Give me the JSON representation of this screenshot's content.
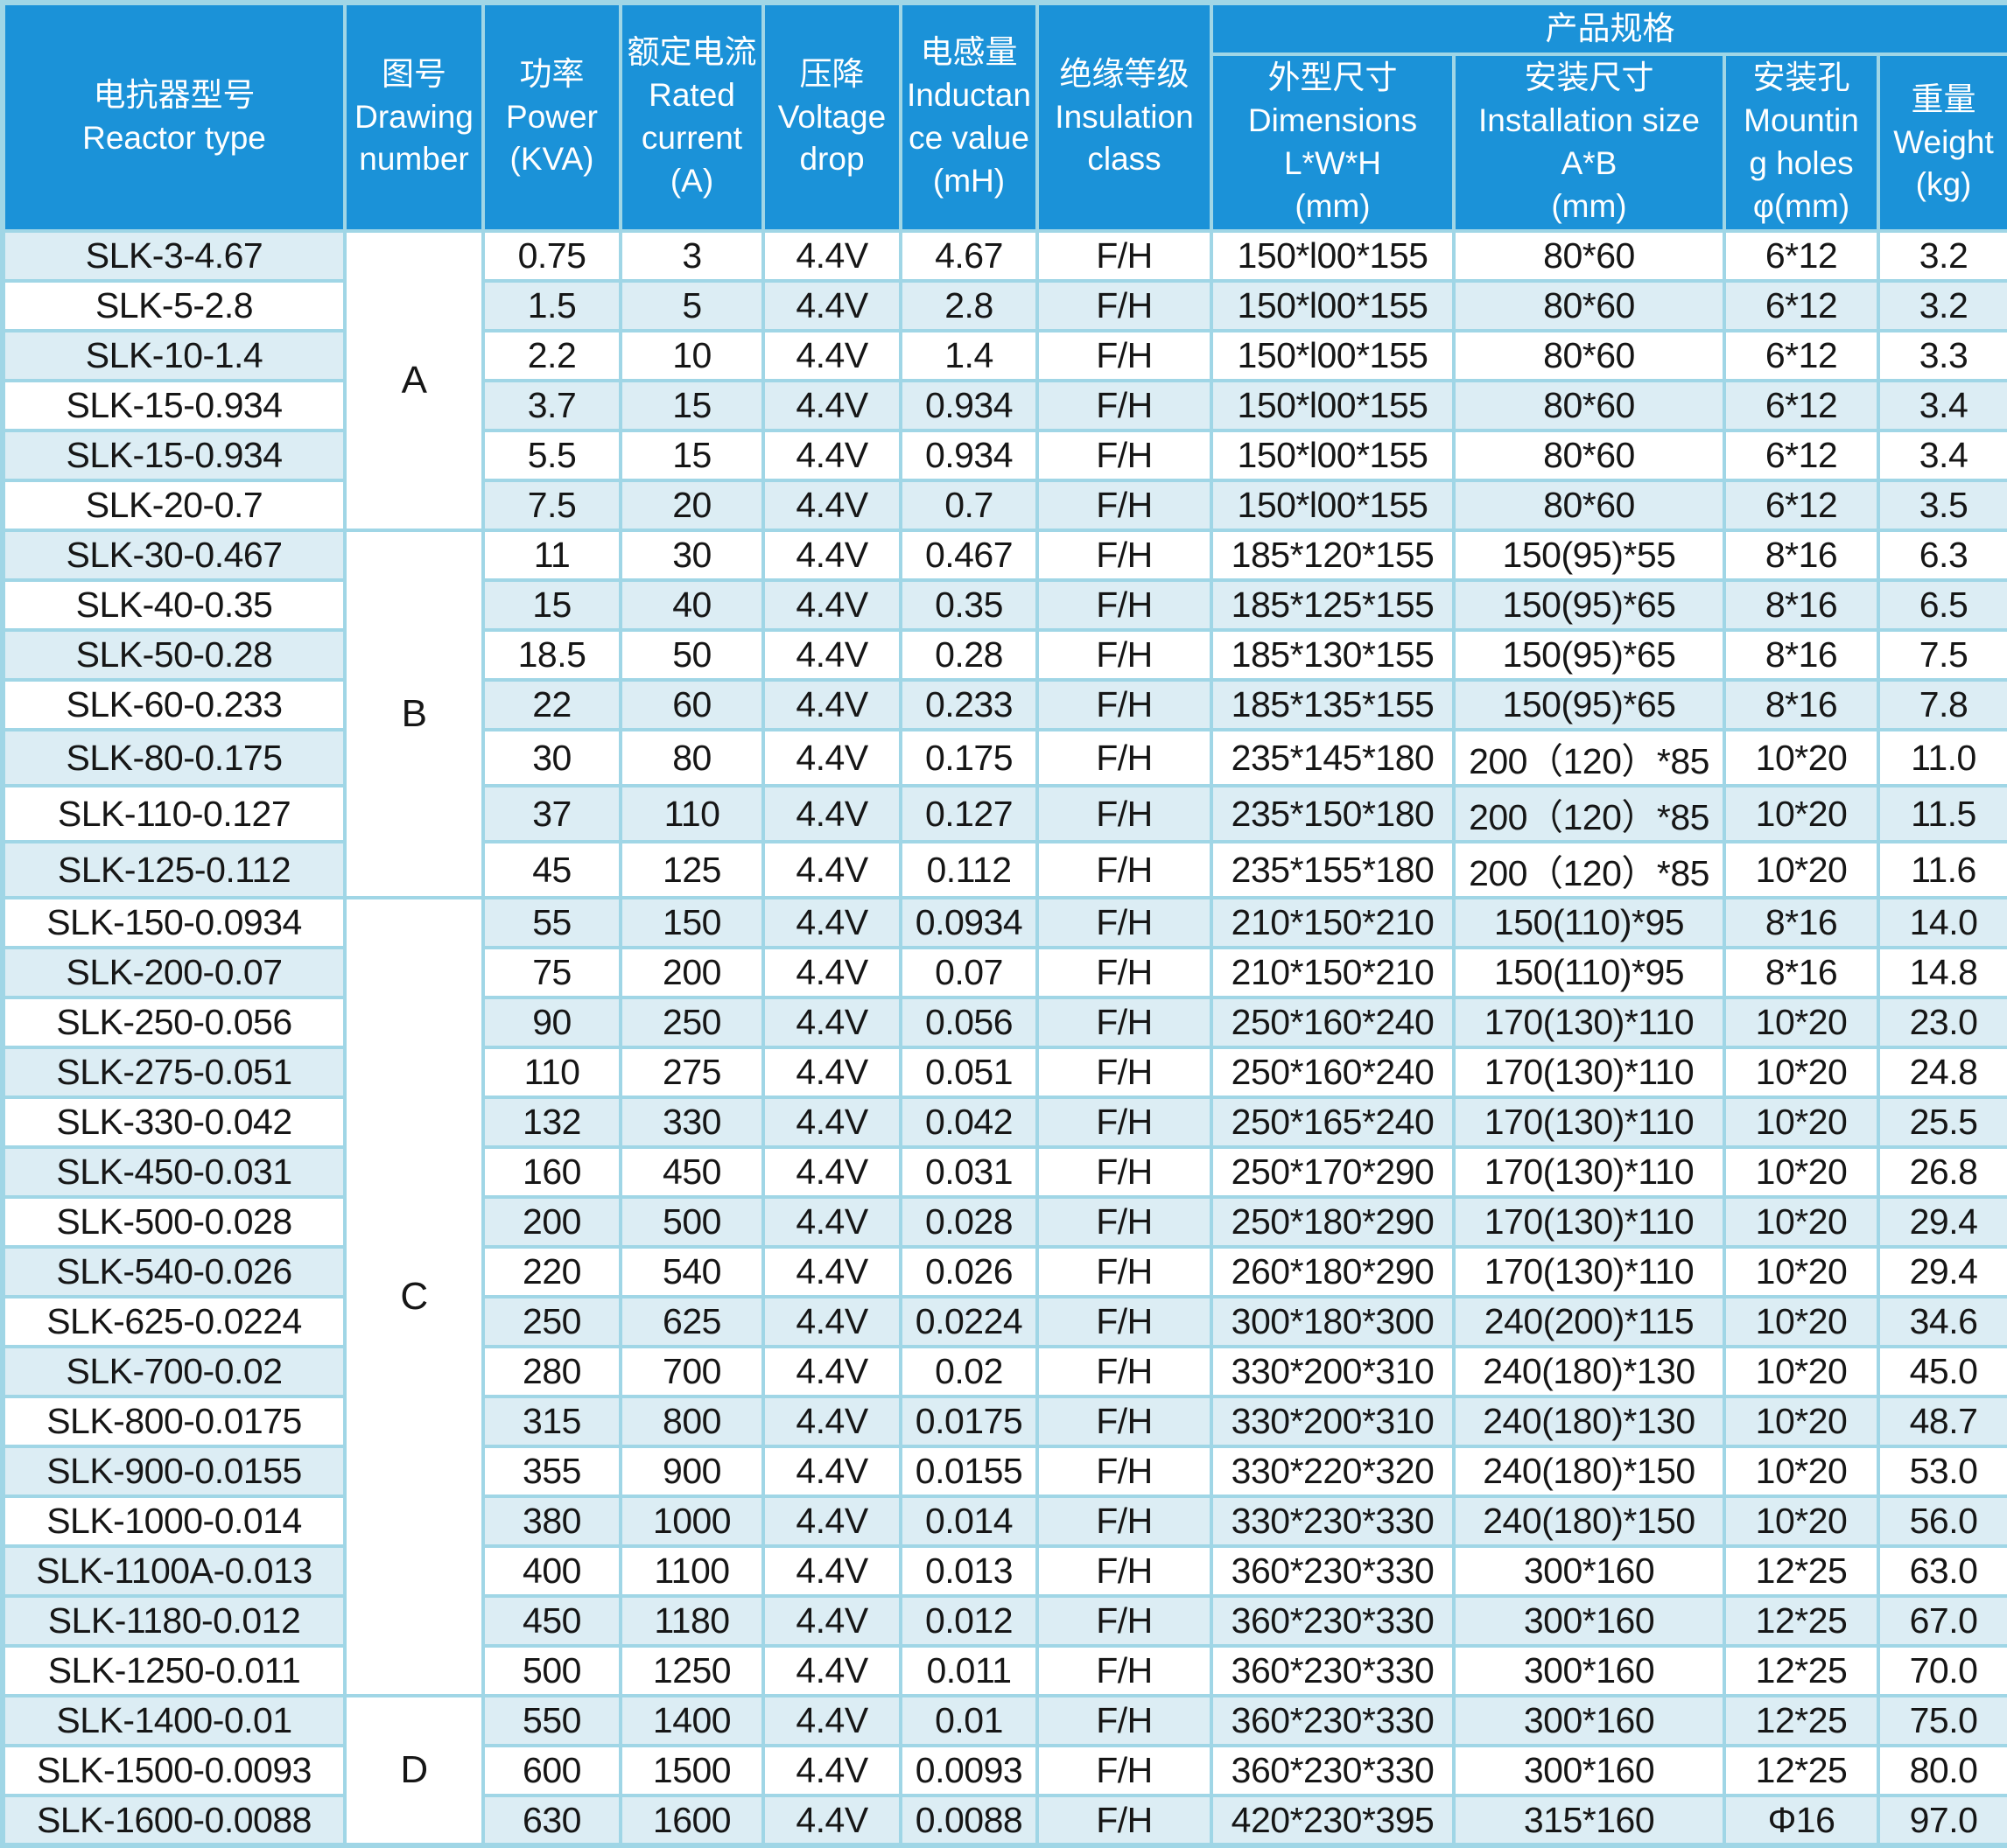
{
  "colors": {
    "header_bg": "#1b92d8",
    "row_blue": "#dcedf4",
    "row_white": "#ffffff",
    "border": "#a0d6e6",
    "header_text": "#ffffff",
    "body_text": "#161616"
  },
  "table": {
    "header": {
      "reactor_type": "电抗器型号\nReactor type",
      "drawing_number": "图号\nDrawing\nnumber",
      "power": "功率\nPower\n(KVA)",
      "rated_current": "额定电流\nRated\ncurrent\n(A)",
      "voltage_drop": "压降\nVoltage\ndrop",
      "inductance": "电感量\nInductan\nce value\n(mH)",
      "insulation": "绝缘等级\nInsulation\nclass",
      "product_spec": "产品规格",
      "dimensions": "外型尺寸\nDimensions\nL*W*H\n(mm)",
      "installation": "安装尺寸\nInstallation size\nA*B\n(mm)",
      "mounting_holes": "安装孔\nMountin\ng holes\nφ(mm)",
      "weight": "重量\nWeight\n(kg)"
    },
    "groups": [
      {
        "label": "A",
        "start": 0,
        "span": 6
      },
      {
        "label": "B",
        "start": 6,
        "span": 7
      },
      {
        "label": "C",
        "start": 13,
        "span": 16
      },
      {
        "label": "D",
        "start": 29,
        "span": 3
      }
    ],
    "rows": [
      {
        "type": "SLK-3-4.67",
        "power": "0.75",
        "current": "3",
        "drop": "4.4V",
        "inductance": "4.67",
        "insulation": "F/H",
        "dimensions": "150*l00*155",
        "installation": "80*60",
        "holes": "6*12",
        "weight": "3.2",
        "left_bg": "blue",
        "data_bg": "white"
      },
      {
        "type": "SLK-5-2.8",
        "power": "1.5",
        "current": "5",
        "drop": "4.4V",
        "inductance": "2.8",
        "insulation": "F/H",
        "dimensions": "150*l00*155",
        "installation": "80*60",
        "holes": "6*12",
        "weight": "3.2",
        "left_bg": "white",
        "data_bg": "blue"
      },
      {
        "type": "SLK-10-1.4",
        "power": "2.2",
        "current": "10",
        "drop": "4.4V",
        "inductance": "1.4",
        "insulation": "F/H",
        "dimensions": "150*l00*155",
        "installation": "80*60",
        "holes": "6*12",
        "weight": "3.3",
        "left_bg": "blue",
        "data_bg": "white"
      },
      {
        "type": "SLK-15-0.934",
        "power": "3.7",
        "current": "15",
        "drop": "4.4V",
        "inductance": "0.934",
        "insulation": "F/H",
        "dimensions": "150*l00*155",
        "installation": "80*60",
        "holes": "6*12",
        "weight": "3.4",
        "left_bg": "white",
        "data_bg": "blue"
      },
      {
        "type": "SLK-15-0.934",
        "power": "5.5",
        "current": "15",
        "drop": "4.4V",
        "inductance": "0.934",
        "insulation": "F/H",
        "dimensions": "150*l00*155",
        "installation": "80*60",
        "holes": "6*12",
        "weight": "3.4",
        "left_bg": "blue",
        "data_bg": "white"
      },
      {
        "type": "SLK-20-0.7",
        "power": "7.5",
        "current": "20",
        "drop": "4.4V",
        "inductance": "0.7",
        "insulation": "F/H",
        "dimensions": "150*l00*155",
        "installation": "80*60",
        "holes": "6*12",
        "weight": "3.5",
        "left_bg": "white",
        "data_bg": "blue"
      },
      {
        "type": "SLK-30-0.467",
        "power": "11",
        "current": "30",
        "drop": "4.4V",
        "inductance": "0.467",
        "insulation": "F/H",
        "dimensions": "185*120*155",
        "installation": "150(95)*55",
        "holes": "8*16",
        "weight": "6.3",
        "left_bg": "blue",
        "data_bg": "white"
      },
      {
        "type": "SLK-40-0.35",
        "power": "15",
        "current": "40",
        "drop": "4.4V",
        "inductance": "0.35",
        "insulation": "F/H",
        "dimensions": "185*125*155",
        "installation": "150(95)*65",
        "holes": "8*16",
        "weight": "6.5",
        "left_bg": "white",
        "data_bg": "blue"
      },
      {
        "type": "SLK-50-0.28",
        "power": "18.5",
        "current": "50",
        "drop": "4.4V",
        "inductance": "0.28",
        "insulation": "F/H",
        "dimensions": "185*130*155",
        "installation": "150(95)*65",
        "holes": "8*16",
        "weight": "7.5",
        "left_bg": "blue",
        "data_bg": "white"
      },
      {
        "type": "SLK-60-0.233",
        "power": "22",
        "current": "60",
        "drop": "4.4V",
        "inductance": "0.233",
        "insulation": "F/H",
        "dimensions": "185*135*155",
        "installation": "150(95)*65",
        "holes": "8*16",
        "weight": "7.8",
        "left_bg": "white",
        "data_bg": "blue"
      },
      {
        "type": "SLK-80-0.175",
        "power": "30",
        "current": "80",
        "drop": "4.4V",
        "inductance": "0.175",
        "insulation": "F/H",
        "dimensions": "235*145*180",
        "installation": "200（120）*85",
        "holes": "10*20",
        "weight": "11.0",
        "left_bg": "blue",
        "data_bg": "white"
      },
      {
        "type": "SLK-110-0.127",
        "power": "37",
        "current": "110",
        "drop": "4.4V",
        "inductance": "0.127",
        "insulation": "F/H",
        "dimensions": "235*150*180",
        "installation": "200（120）*85",
        "holes": "10*20",
        "weight": "11.5",
        "left_bg": "white",
        "data_bg": "blue"
      },
      {
        "type": "SLK-125-0.112",
        "power": "45",
        "current": "125",
        "drop": "4.4V",
        "inductance": "0.112",
        "insulation": "F/H",
        "dimensions": "235*155*180",
        "installation": "200（120）*85",
        "holes": "10*20",
        "weight": "11.6",
        "left_bg": "blue",
        "data_bg": "white"
      },
      {
        "type": "SLK-150-0.0934",
        "power": "55",
        "current": "150",
        "drop": "4.4V",
        "inductance": "0.0934",
        "insulation": "F/H",
        "dimensions": "210*150*210",
        "installation": "150(110)*95",
        "holes": "8*16",
        "weight": "14.0",
        "left_bg": "white",
        "data_bg": "blue"
      },
      {
        "type": "SLK-200-0.07",
        "power": "75",
        "current": "200",
        "drop": "4.4V",
        "inductance": "0.07",
        "insulation": "F/H",
        "dimensions": "210*150*210",
        "installation": "150(110)*95",
        "holes": "8*16",
        "weight": "14.8",
        "left_bg": "blue",
        "data_bg": "white"
      },
      {
        "type": "SLK-250-0.056",
        "power": "90",
        "current": "250",
        "drop": "4.4V",
        "inductance": "0.056",
        "insulation": "F/H",
        "dimensions": "250*160*240",
        "installation": "170(130)*110",
        "holes": "10*20",
        "weight": "23.0",
        "left_bg": "white",
        "data_bg": "blue"
      },
      {
        "type": "SLK-275-0.051",
        "power": "110",
        "current": "275",
        "drop": "4.4V",
        "inductance": "0.051",
        "insulation": "F/H",
        "dimensions": "250*160*240",
        "installation": "170(130)*110",
        "holes": "10*20",
        "weight": "24.8",
        "left_bg": "blue",
        "data_bg": "white"
      },
      {
        "type": "SLK-330-0.042",
        "power": "132",
        "current": "330",
        "drop": "4.4V",
        "inductance": "0.042",
        "insulation": "F/H",
        "dimensions": "250*165*240",
        "installation": "170(130)*110",
        "holes": "10*20",
        "weight": "25.5",
        "left_bg": "white",
        "data_bg": "blue"
      },
      {
        "type": "SLK-450-0.031",
        "power": "160",
        "current": "450",
        "drop": "4.4V",
        "inductance": "0.031",
        "insulation": "F/H",
        "dimensions": "250*170*290",
        "installation": "170(130)*110",
        "holes": "10*20",
        "weight": "26.8",
        "left_bg": "blue",
        "data_bg": "white"
      },
      {
        "type": "SLK-500-0.028",
        "power": "200",
        "current": "500",
        "drop": "4.4V",
        "inductance": "0.028",
        "insulation": "F/H",
        "dimensions": "250*180*290",
        "installation": "170(130)*110",
        "holes": "10*20",
        "weight": "29.4",
        "left_bg": "white",
        "data_bg": "blue"
      },
      {
        "type": "SLK-540-0.026",
        "power": "220",
        "current": "540",
        "drop": "4.4V",
        "inductance": "0.026",
        "insulation": "F/H",
        "dimensions": "260*180*290",
        "installation": "170(130)*110",
        "holes": "10*20",
        "weight": "29.4",
        "left_bg": "blue",
        "data_bg": "white"
      },
      {
        "type": "SLK-625-0.0224",
        "power": "250",
        "current": "625",
        "drop": "4.4V",
        "inductance": "0.0224",
        "insulation": "F/H",
        "dimensions": "300*180*300",
        "installation": "240(200)*115",
        "holes": "10*20",
        "weight": "34.6",
        "left_bg": "white",
        "data_bg": "blue"
      },
      {
        "type": "SLK-700-0.02",
        "power": "280",
        "current": "700",
        "drop": "4.4V",
        "inductance": "0.02",
        "insulation": "F/H",
        "dimensions": "330*200*310",
        "installation": "240(180)*130",
        "holes": "10*20",
        "weight": "45.0",
        "left_bg": "blue",
        "data_bg": "white"
      },
      {
        "type": "SLK-800-0.0175",
        "power": "315",
        "current": "800",
        "drop": "4.4V",
        "inductance": "0.0175",
        "insulation": "F/H",
        "dimensions": "330*200*310",
        "installation": "240(180)*130",
        "holes": "10*20",
        "weight": "48.7",
        "left_bg": "white",
        "data_bg": "blue"
      },
      {
        "type": "SLK-900-0.0155",
        "power": "355",
        "current": "900",
        "drop": "4.4V",
        "inductance": "0.0155",
        "insulation": "F/H",
        "dimensions": "330*220*320",
        "installation": "240(180)*150",
        "holes": "10*20",
        "weight": "53.0",
        "left_bg": "blue",
        "data_bg": "white"
      },
      {
        "type": "SLK-1000-0.014",
        "power": "380",
        "current": "1000",
        "drop": "4.4V",
        "inductance": "0.014",
        "insulation": "F/H",
        "dimensions": "330*230*330",
        "installation": "240(180)*150",
        "holes": "10*20",
        "weight": "56.0",
        "left_bg": "white",
        "data_bg": "blue"
      },
      {
        "type": "SLK-1100A-0.013",
        "power": "400",
        "current": "1100",
        "drop": "4.4V",
        "inductance": "0.013",
        "insulation": "F/H",
        "dimensions": "360*230*330",
        "installation": "300*160",
        "holes": "12*25",
        "weight": "63.0",
        "left_bg": "blue",
        "data_bg": "white"
      },
      {
        "type": "SLK-1180-0.012",
        "power": "450",
        "current": "1180",
        "drop": "4.4V",
        "inductance": "0.012",
        "insulation": "F/H",
        "dimensions": "360*230*330",
        "installation": "300*160",
        "holes": "12*25",
        "weight": "67.0",
        "left_bg": "blue",
        "data_bg": "blue"
      },
      {
        "type": "SLK-1250-0.011",
        "power": "500",
        "current": "1250",
        "drop": "4.4V",
        "inductance": "0.011",
        "insulation": "F/H",
        "dimensions": "360*230*330",
        "installation": "300*160",
        "holes": "12*25",
        "weight": "70.0",
        "left_bg": "white",
        "data_bg": "white"
      },
      {
        "type": "SLK-1400-0.01",
        "power": "550",
        "current": "1400",
        "drop": "4.4V",
        "inductance": "0.01",
        "insulation": "F/H",
        "dimensions": "360*230*330",
        "installation": "300*160",
        "holes": "12*25",
        "weight": "75.0",
        "left_bg": "blue",
        "data_bg": "blue"
      },
      {
        "type": "SLK-1500-0.0093",
        "power": "600",
        "current": "1500",
        "drop": "4.4V",
        "inductance": "0.0093",
        "insulation": "F/H",
        "dimensions": "360*230*330",
        "installation": "300*160",
        "holes": "12*25",
        "weight": "80.0",
        "left_bg": "white",
        "data_bg": "white"
      },
      {
        "type": "SLK-1600-0.0088",
        "power": "630",
        "current": "1600",
        "drop": "4.4V",
        "inductance": "0.0088",
        "insulation": "F/H",
        "dimensions": "420*230*395",
        "installation": "315*160",
        "holes": "Φ16",
        "weight": "97.0",
        "left_bg": "blue",
        "data_bg": "blue"
      }
    ]
  }
}
